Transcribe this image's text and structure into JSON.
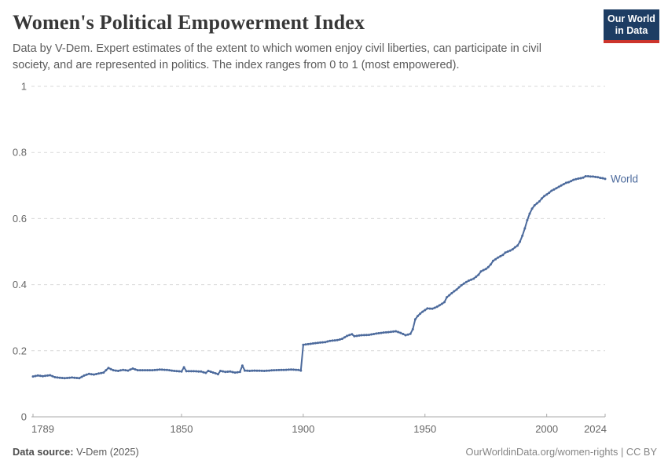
{
  "header": {
    "title": "Women's Political Empowerment Index",
    "subtitle": "Data by V-Dem. Expert estimates of the extent to which women enjoy civil liberties, can participate in civil society, and are represented in politics. The index ranges from 0 to 1 (most empowered).",
    "logo": {
      "line1": "Our World",
      "line2": "in Data",
      "bg": "#1d3d63",
      "accent": "#cc342c"
    }
  },
  "footer": {
    "source_label": "Data source:",
    "source_value": " V-Dem (2025)",
    "credit": "OurWorldinData.org/women-rights | CC BY"
  },
  "colors": {
    "series": "#4c6a9c",
    "grid": "#d9d9d9",
    "axis": "#a9a9a9",
    "tick_label": "#666666"
  },
  "chart_data": {
    "type": "line",
    "title": "Women's Political Empowerment Index",
    "xlabel": "",
    "ylabel": "",
    "xlim": [
      1789,
      2024
    ],
    "ylim": [
      0,
      1
    ],
    "x_ticks": [
      1789,
      1850,
      1900,
      1950,
      2000,
      2024
    ],
    "y_ticks": [
      0,
      0.2,
      0.4,
      0.6,
      0.8,
      1
    ],
    "grid": "horizontal-dashed",
    "legend_position": "end-of-line",
    "series": [
      {
        "name": "World",
        "color": "#4c6a9c",
        "points": [
          [
            1789,
            0.122
          ],
          [
            1791,
            0.125
          ],
          [
            1793,
            0.123
          ],
          [
            1796,
            0.126
          ],
          [
            1798,
            0.12
          ],
          [
            1800,
            0.118
          ],
          [
            1802,
            0.117
          ],
          [
            1805,
            0.119
          ],
          [
            1808,
            0.117
          ],
          [
            1810,
            0.125
          ],
          [
            1812,
            0.13
          ],
          [
            1814,
            0.128
          ],
          [
            1816,
            0.131
          ],
          [
            1818,
            0.134
          ],
          [
            1820,
            0.148
          ],
          [
            1822,
            0.141
          ],
          [
            1824,
            0.139
          ],
          [
            1826,
            0.142
          ],
          [
            1828,
            0.14
          ],
          [
            1830,
            0.146
          ],
          [
            1832,
            0.141
          ],
          [
            1835,
            0.141
          ],
          [
            1838,
            0.141
          ],
          [
            1841,
            0.143
          ],
          [
            1844,
            0.142
          ],
          [
            1847,
            0.139
          ],
          [
            1850,
            0.137
          ],
          [
            1851,
            0.15
          ],
          [
            1852,
            0.138
          ],
          [
            1855,
            0.138
          ],
          [
            1858,
            0.137
          ],
          [
            1860,
            0.133
          ],
          [
            1861,
            0.139
          ],
          [
            1863,
            0.134
          ],
          [
            1865,
            0.129
          ],
          [
            1866,
            0.139
          ],
          [
            1868,
            0.136
          ],
          [
            1870,
            0.137
          ],
          [
            1872,
            0.134
          ],
          [
            1874,
            0.136
          ],
          [
            1875,
            0.155
          ],
          [
            1876,
            0.14
          ],
          [
            1878,
            0.139
          ],
          [
            1880,
            0.14
          ],
          [
            1884,
            0.139
          ],
          [
            1888,
            0.141
          ],
          [
            1892,
            0.142
          ],
          [
            1895,
            0.143
          ],
          [
            1898,
            0.142
          ],
          [
            1899,
            0.14
          ],
          [
            1900,
            0.218
          ],
          [
            1903,
            0.221
          ],
          [
            1906,
            0.224
          ],
          [
            1909,
            0.226
          ],
          [
            1911,
            0.23
          ],
          [
            1914,
            0.232
          ],
          [
            1916,
            0.236
          ],
          [
            1918,
            0.245
          ],
          [
            1920,
            0.25
          ],
          [
            1921,
            0.244
          ],
          [
            1924,
            0.247
          ],
          [
            1927,
            0.248
          ],
          [
            1930,
            0.252
          ],
          [
            1933,
            0.255
          ],
          [
            1936,
            0.257
          ],
          [
            1938,
            0.259
          ],
          [
            1940,
            0.254
          ],
          [
            1942,
            0.247
          ],
          [
            1944,
            0.251
          ],
          [
            1945,
            0.265
          ],
          [
            1946,
            0.295
          ],
          [
            1947,
            0.305
          ],
          [
            1948,
            0.312
          ],
          [
            1949,
            0.318
          ],
          [
            1950,
            0.323
          ],
          [
            1951,
            0.328
          ],
          [
            1953,
            0.327
          ],
          [
            1955,
            0.333
          ],
          [
            1957,
            0.342
          ],
          [
            1958,
            0.347
          ],
          [
            1959,
            0.362
          ],
          [
            1960,
            0.368
          ],
          [
            1961,
            0.374
          ],
          [
            1962,
            0.38
          ],
          [
            1963,
            0.385
          ],
          [
            1964,
            0.392
          ],
          [
            1965,
            0.398
          ],
          [
            1966,
            0.403
          ],
          [
            1967,
            0.408
          ],
          [
            1968,
            0.412
          ],
          [
            1969,
            0.415
          ],
          [
            1970,
            0.418
          ],
          [
            1971,
            0.424
          ],
          [
            1972,
            0.43
          ],
          [
            1973,
            0.44
          ],
          [
            1974,
            0.444
          ],
          [
            1975,
            0.447
          ],
          [
            1976,
            0.453
          ],
          [
            1977,
            0.461
          ],
          [
            1978,
            0.472
          ],
          [
            1979,
            0.477
          ],
          [
            1980,
            0.482
          ],
          [
            1981,
            0.486
          ],
          [
            1982,
            0.49
          ],
          [
            1983,
            0.497
          ],
          [
            1984,
            0.5
          ],
          [
            1985,
            0.503
          ],
          [
            1986,
            0.507
          ],
          [
            1987,
            0.513
          ],
          [
            1988,
            0.518
          ],
          [
            1989,
            0.53
          ],
          [
            1990,
            0.548
          ],
          [
            1991,
            0.57
          ],
          [
            1992,
            0.595
          ],
          [
            1993,
            0.615
          ],
          [
            1994,
            0.63
          ],
          [
            1995,
            0.64
          ],
          [
            1996,
            0.646
          ],
          [
            1997,
            0.652
          ],
          [
            1998,
            0.661
          ],
          [
            1999,
            0.668
          ],
          [
            2000,
            0.673
          ],
          [
            2001,
            0.678
          ],
          [
            2002,
            0.684
          ],
          [
            2003,
            0.688
          ],
          [
            2004,
            0.692
          ],
          [
            2005,
            0.696
          ],
          [
            2006,
            0.7
          ],
          [
            2007,
            0.704
          ],
          [
            2008,
            0.708
          ],
          [
            2009,
            0.71
          ],
          [
            2010,
            0.713
          ],
          [
            2011,
            0.717
          ],
          [
            2012,
            0.719
          ],
          [
            2013,
            0.721
          ],
          [
            2014,
            0.722
          ],
          [
            2015,
            0.724
          ],
          [
            2016,
            0.728
          ],
          [
            2017,
            0.728
          ],
          [
            2018,
            0.727
          ],
          [
            2019,
            0.727
          ],
          [
            2020,
            0.726
          ],
          [
            2021,
            0.725
          ],
          [
            2022,
            0.723
          ],
          [
            2023,
            0.722
          ],
          [
            2024,
            0.72
          ]
        ]
      }
    ]
  }
}
